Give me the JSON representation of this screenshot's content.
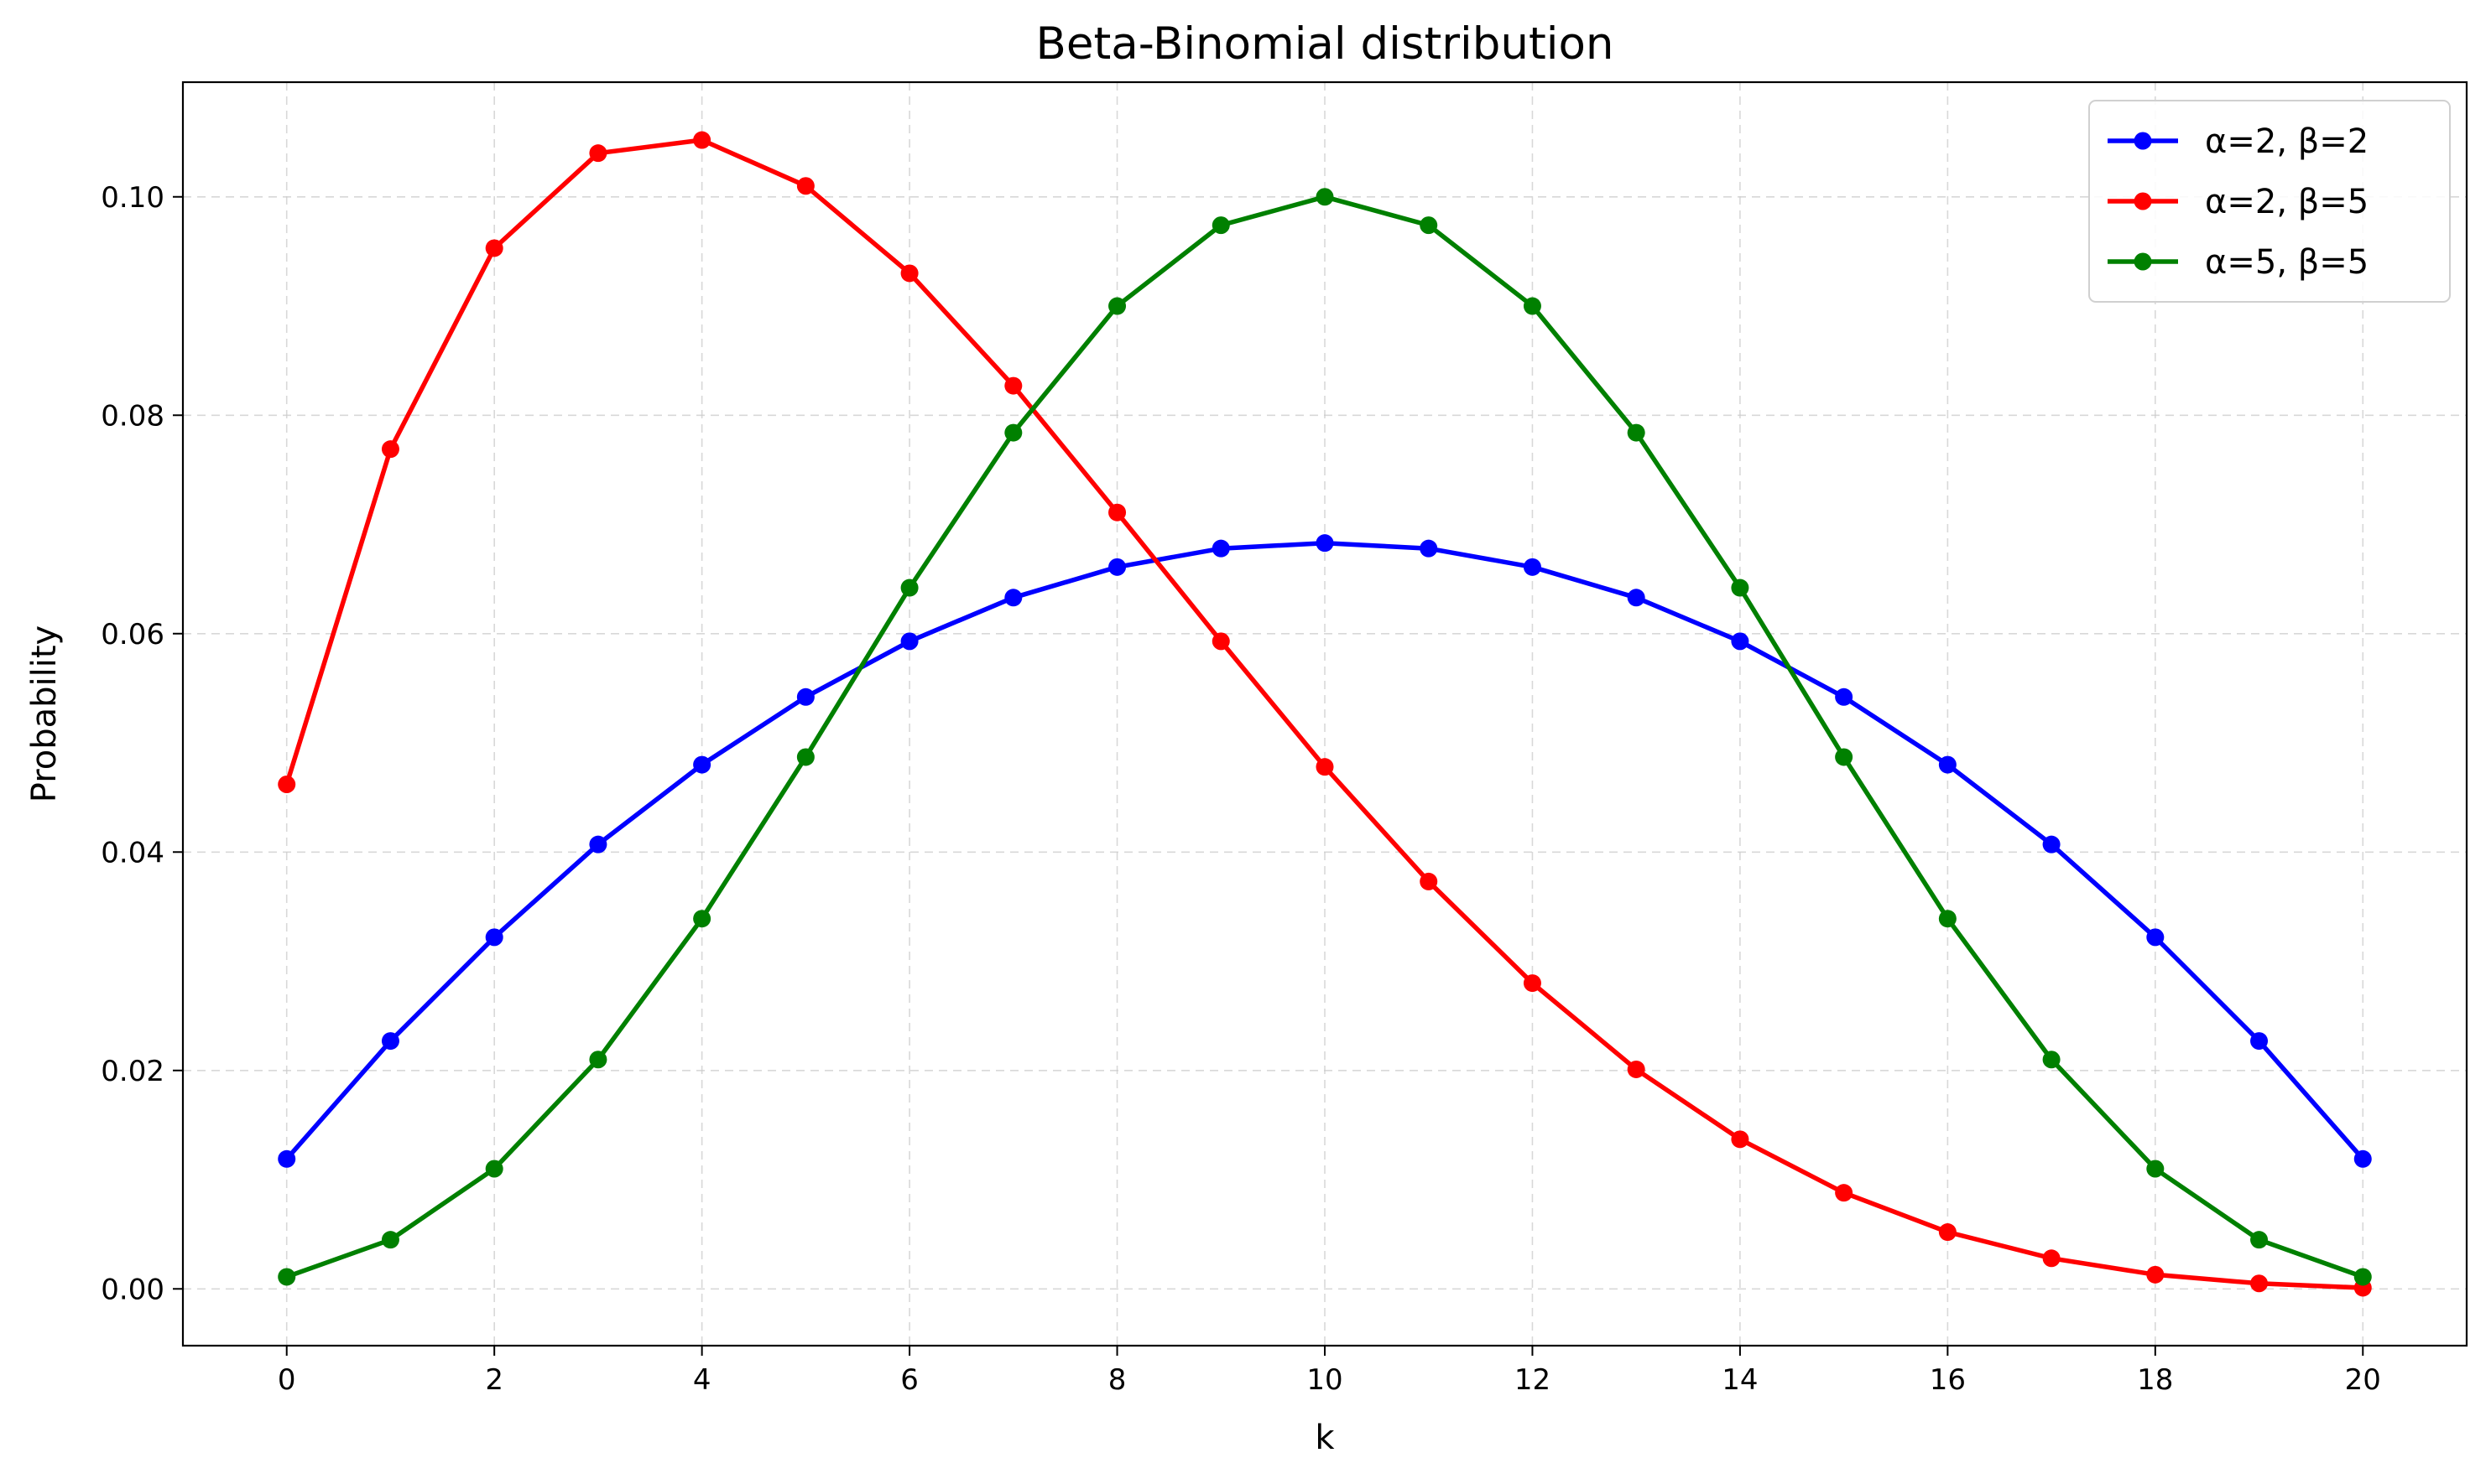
{
  "chart_data": {
    "type": "line",
    "title": "Beta-Binomial distribution",
    "xlabel": "k",
    "ylabel": "Probability",
    "x": [
      0,
      1,
      2,
      3,
      4,
      5,
      6,
      7,
      8,
      9,
      10,
      11,
      12,
      13,
      14,
      15,
      16,
      17,
      18,
      19,
      20
    ],
    "xlim": [
      -1,
      21
    ],
    "ylim": [
      -0.0052,
      0.1105
    ],
    "xticks": [
      "0",
      "2",
      "4",
      "6",
      "8",
      "10",
      "12",
      "14",
      "16",
      "18",
      "20"
    ],
    "yticks": [
      "0.00",
      "0.02",
      "0.04",
      "0.06",
      "0.08",
      "0.10"
    ],
    "grid": true,
    "legend_position": "top-right",
    "series": [
      {
        "name": "α=2, β=2",
        "color": "#0000ff",
        "values": [
          0.0119,
          0.0227,
          0.0322,
          0.0407,
          0.048,
          0.0542,
          0.0593,
          0.0633,
          0.0661,
          0.0678,
          0.0683,
          0.0678,
          0.0661,
          0.0633,
          0.0593,
          0.0542,
          0.048,
          0.0407,
          0.0322,
          0.0227,
          0.0119
        ]
      },
      {
        "name": "α=2, β=5",
        "color": "#ff0000",
        "values": [
          0.0462,
          0.0769,
          0.0953,
          0.104,
          0.1052,
          0.101,
          0.093,
          0.0827,
          0.0711,
          0.0593,
          0.0478,
          0.0373,
          0.028,
          0.0201,
          0.0137,
          0.0088,
          0.0052,
          0.0028,
          0.0013,
          0.0005,
          0.0001
        ]
      },
      {
        "name": "α=5, β=5",
        "color": "#008000",
        "values": [
          0.0011,
          0.0045,
          0.011,
          0.021,
          0.0339,
          0.0487,
          0.0642,
          0.0784,
          0.09,
          0.0974,
          0.1,
          0.0974,
          0.09,
          0.0784,
          0.0642,
          0.0487,
          0.0339,
          0.021,
          0.011,
          0.0045,
          0.0011
        ]
      }
    ]
  }
}
